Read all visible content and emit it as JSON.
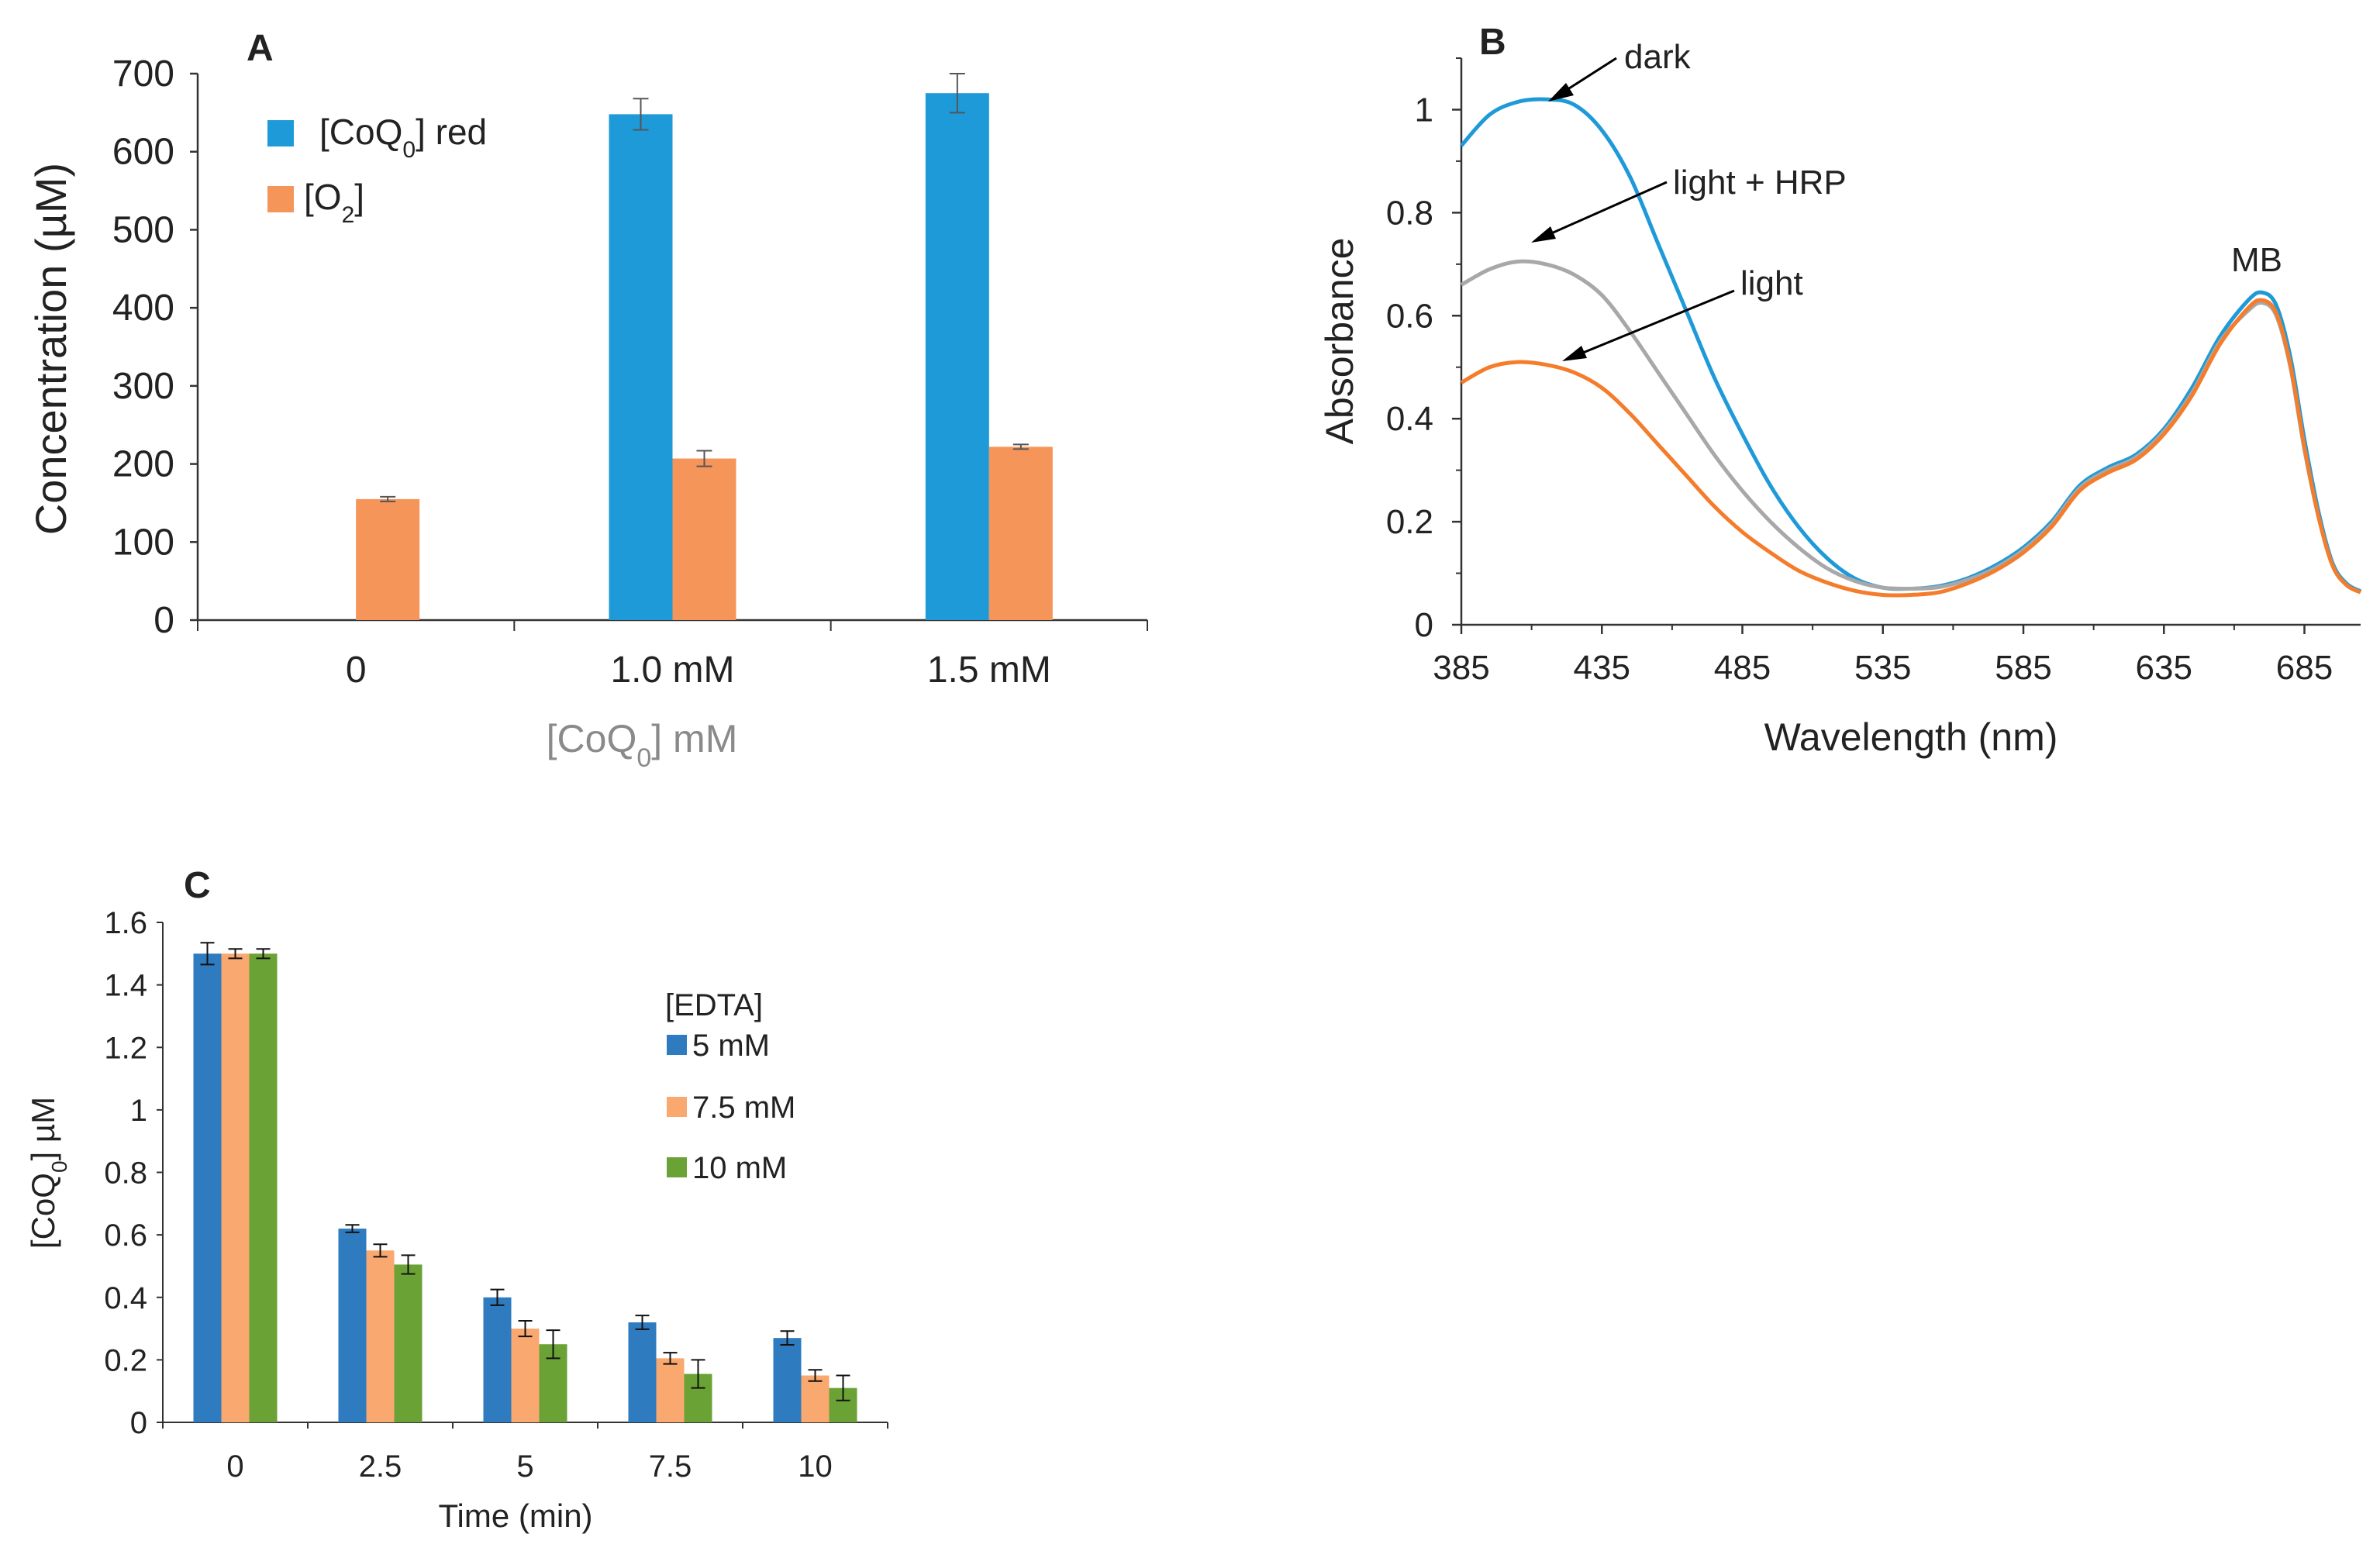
{
  "chart_data": [
    {
      "panel": "A",
      "type": "bar",
      "title": "",
      "categories": [
        "0",
        "1.0 mM",
        "1.5 mM"
      ],
      "series": [
        {
          "name": "[CoQ0] red",
          "name_main": "[CoQ",
          "name_sub": "0",
          "name_tail": "] red",
          "color": "#1f9ad8",
          "values": [
            0,
            648,
            675
          ],
          "errors": [
            0,
            20,
            25
          ]
        },
        {
          "name": "[O2]",
          "name_main": "[O",
          "name_sub": "2",
          "name_tail": "]",
          "color": "#f6955a",
          "values": [
            155,
            207,
            222
          ],
          "errors": [
            3,
            10,
            3
          ]
        }
      ],
      "xlabel": "[CoQ0] mM",
      "xlabel_main": "[CoQ",
      "xlabel_sub": "0",
      "xlabel_tail": "] mM",
      "ylabel": "Concentration (µM)",
      "ylim": [
        0,
        700
      ],
      "yticks": [
        0,
        100,
        200,
        300,
        400,
        500,
        600,
        700
      ],
      "legend": "top-left"
    },
    {
      "panel": "B",
      "type": "line",
      "xlabel": "Wavelength (nm)",
      "ylabel": "Absorbance",
      "xlim": [
        385,
        705
      ],
      "ylim": [
        0,
        1.1
      ],
      "xticks": [
        385,
        435,
        485,
        535,
        585,
        635,
        685
      ],
      "yticks": [
        0,
        0.2,
        0.4,
        0.6,
        0.8,
        1
      ],
      "ytick_labels": [
        "0",
        "0.2",
        "0.4",
        "0.6",
        "0.8",
        "1"
      ],
      "x": [
        385,
        395,
        405,
        415,
        425,
        435,
        445,
        455,
        465,
        475,
        485,
        495,
        505,
        515,
        525,
        535,
        545,
        555,
        565,
        575,
        585,
        595,
        605,
        615,
        625,
        635,
        645,
        655,
        665,
        670,
        675,
        680,
        685,
        690,
        695,
        700,
        705
      ],
      "series": [
        {
          "name": "dark",
          "color": "#1f9ad8",
          "values": [
            0.93,
            0.99,
            1.015,
            1.02,
            1.01,
            0.96,
            0.87,
            0.74,
            0.61,
            0.48,
            0.37,
            0.27,
            0.19,
            0.13,
            0.09,
            0.072,
            0.07,
            0.075,
            0.09,
            0.115,
            0.15,
            0.2,
            0.27,
            0.305,
            0.33,
            0.38,
            0.46,
            0.56,
            0.63,
            0.645,
            0.62,
            0.52,
            0.36,
            0.22,
            0.12,
            0.08,
            0.065
          ]
        },
        {
          "name": "light + HRP",
          "color": "#a8a8a8",
          "values": [
            0.66,
            0.69,
            0.705,
            0.7,
            0.68,
            0.64,
            0.57,
            0.49,
            0.41,
            0.33,
            0.26,
            0.2,
            0.15,
            0.11,
            0.085,
            0.072,
            0.07,
            0.073,
            0.087,
            0.11,
            0.145,
            0.195,
            0.265,
            0.3,
            0.325,
            0.375,
            0.45,
            0.55,
            0.61,
            0.625,
            0.6,
            0.5,
            0.34,
            0.21,
            0.115,
            0.077,
            0.063
          ]
        },
        {
          "name": "light",
          "color": "#f47c2a",
          "values": [
            0.47,
            0.5,
            0.51,
            0.505,
            0.49,
            0.46,
            0.41,
            0.35,
            0.29,
            0.23,
            0.18,
            0.14,
            0.105,
            0.082,
            0.066,
            0.058,
            0.058,
            0.063,
            0.08,
            0.105,
            0.14,
            0.19,
            0.26,
            0.295,
            0.32,
            0.37,
            0.445,
            0.545,
            0.615,
            0.63,
            0.605,
            0.505,
            0.345,
            0.21,
            0.115,
            0.077,
            0.063
          ]
        }
      ],
      "annotations": [
        "dark",
        "light + HRP",
        "light",
        "MB"
      ]
    },
    {
      "panel": "C",
      "type": "bar",
      "categories": [
        "0",
        "2.5",
        "5",
        "7.5",
        "10"
      ],
      "series": [
        {
          "name": "5 mM",
          "color": "#2e7bc0",
          "values": [
            1.5,
            0.62,
            0.4,
            0.32,
            0.27
          ],
          "errors": [
            0.035,
            0.012,
            0.025,
            0.022,
            0.022
          ]
        },
        {
          "name": "7.5 mM",
          "color": "#f9a870",
          "values": [
            1.5,
            0.55,
            0.3,
            0.205,
            0.15
          ],
          "errors": [
            0.015,
            0.02,
            0.025,
            0.018,
            0.018
          ]
        },
        {
          "name": "10 mM",
          "color": "#6aa235",
          "values": [
            1.5,
            0.505,
            0.25,
            0.155,
            0.11
          ],
          "errors": [
            0.015,
            0.03,
            0.045,
            0.045,
            0.04
          ]
        }
      ],
      "xlabel": "Time (min)",
      "ylabel": "[CoQ0] µM",
      "ylabel_main": "[CoQ",
      "ylabel_sub": "0",
      "ylabel_tail": "] µM",
      "ylim": [
        0,
        1.6
      ],
      "yticks": [
        0,
        0.2,
        0.4,
        0.6,
        0.8,
        1,
        1.2,
        1.4,
        1.6
      ],
      "ytick_labels": [
        "0",
        "0.2",
        "0.4",
        "0.6",
        "0.8",
        "1",
        "1.2",
        "1.4",
        "1.6"
      ],
      "legend_title": "[EDTA]",
      "legend": "right"
    }
  ]
}
